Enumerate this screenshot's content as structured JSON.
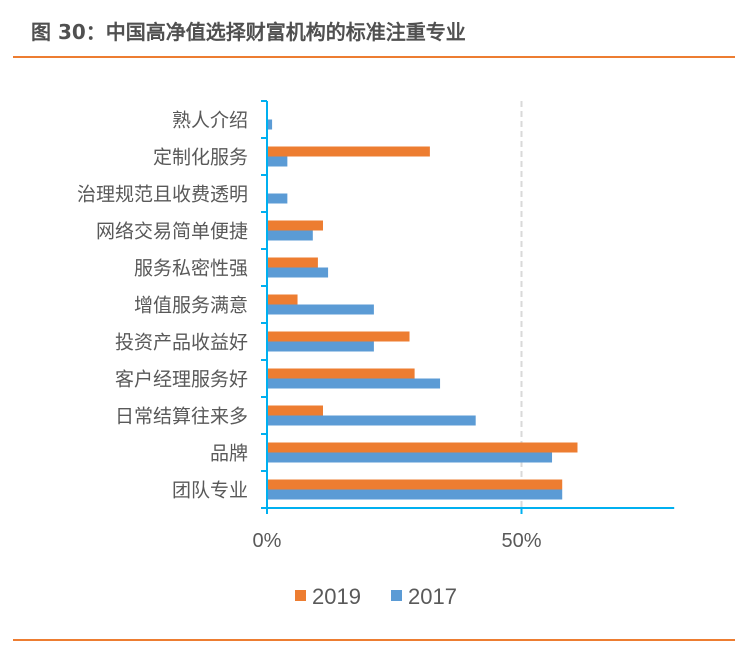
{
  "title": "图 30：中国高净值选择财富机构的标准注重专业",
  "chart_data": {
    "type": "bar",
    "orientation": "horizontal",
    "title": "",
    "categories": [
      "熟人介绍",
      "定制化服务",
      "治理规范且收费透明",
      "网络交易简单便捷",
      "服务私密性强",
      "增值服务满意",
      "投资产品收益好",
      "客户经理服务好",
      "日常结算往来多",
      "品牌",
      "团队专业"
    ],
    "series": [
      {
        "name": "2019",
        "color": "#ED7D31",
        "values": [
          0,
          32,
          0,
          11,
          10,
          6,
          28,
          29,
          11,
          61,
          58
        ]
      },
      {
        "name": "2017",
        "color": "#5B9BD5",
        "values": [
          1,
          4,
          4,
          9,
          12,
          21,
          21,
          34,
          41,
          56,
          58
        ]
      }
    ],
    "xlim": [
      0,
      80
    ],
    "x_ticks": [
      "0%",
      "50%"
    ],
    "x_tick_values": [
      0,
      50
    ],
    "unit": "%",
    "grid": "dashed vertical at 50%",
    "legend": "bottom",
    "axis_color": "#00B0F0"
  }
}
